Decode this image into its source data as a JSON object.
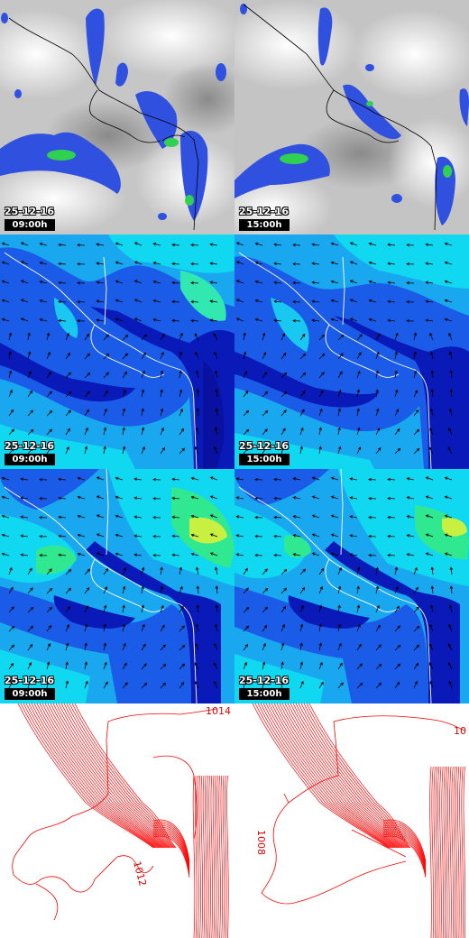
{
  "colors": {
    "coast": "#ffffff",
    "coast_dark": "#000000",
    "satellite_bg": "#c8c8c8",
    "precip_light": "#3050e0",
    "precip_heavy": "#30d050",
    "wind_deep": "#0a1ab8",
    "wind_mid": "#1a5ce8",
    "wind_light": "#19a8f0",
    "wind_cyan": "#10d8f0",
    "wind_green": "#30e890",
    "wind_yellow": "#c8f040",
    "isobar": "#ff0000"
  },
  "panels": [
    {
      "id": "satellite",
      "product": "cloud-precipitation",
      "date": "25-12-16",
      "time": "09:00h"
    },
    {
      "id": "satellite",
      "product": "cloud-precipitation",
      "date": "25-12-16",
      "time": "15:00h"
    },
    {
      "id": "wind-low",
      "product": "wind-field",
      "date": "25-12-16",
      "time": "09:00h"
    },
    {
      "id": "wind-low",
      "product": "wind-field",
      "date": "25-12-16",
      "time": "15:00h"
    },
    {
      "id": "wind-high",
      "product": "wind-field",
      "date": "25-12-16",
      "time": "09:00h"
    },
    {
      "id": "wind-high",
      "product": "wind-field",
      "date": "25-12-16",
      "time": "15:00h"
    },
    {
      "id": "pressure",
      "product": "isobars",
      "isobar_labels": [
        "1014",
        "1012"
      ]
    },
    {
      "id": "pressure",
      "product": "isobars",
      "isobar_labels": [
        "10",
        "1008"
      ]
    }
  ]
}
